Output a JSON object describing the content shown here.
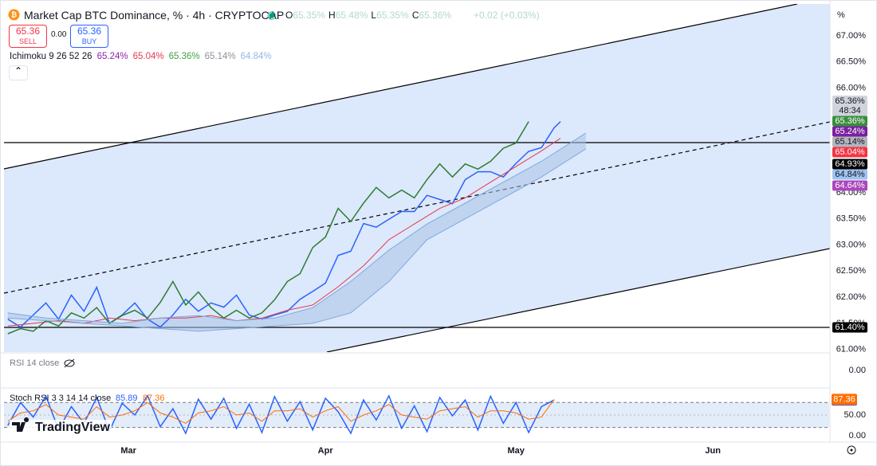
{
  "header": {
    "title": "Market Cap BTC Dominance, % · 4h · CRYPTOCAP",
    "ohlc": [
      {
        "label": "O",
        "value": "65.35%"
      },
      {
        "label": "H",
        "value": "65.48%"
      },
      {
        "label": "L",
        "value": "65.35%"
      },
      {
        "label": "C",
        "value": "65.36%"
      }
    ],
    "change": "+0.02 (+0.03%)",
    "sell": {
      "price": "65.36",
      "label": "SELL"
    },
    "spread": "0.00",
    "buy": {
      "price": "65.36",
      "label": "BUY"
    },
    "indicator": {
      "name": "Ichimoku 9 26 52 26",
      "values": [
        {
          "text": "65.24%",
          "color": "#8e24aa"
        },
        {
          "text": "65.04%",
          "color": "#e53950"
        },
        {
          "text": "65.36%",
          "color": "#43a047"
        },
        {
          "text": "65.14%",
          "color": "#8d9199"
        },
        {
          "text": "64.84%",
          "color": "#90b8e8"
        }
      ]
    },
    "unit": "%",
    "logo": "TradingView"
  },
  "price_labels": [
    {
      "text": "65.36%",
      "sub": "48:34",
      "color": "#d1d4dc",
      "text_color": "#131722"
    },
    {
      "text": "65.36%",
      "color": "#388e3c",
      "text_color": "#ffffff"
    },
    {
      "text": "65.24%",
      "color": "#7b1fa2",
      "text_color": "#ffffff"
    },
    {
      "text": "65.14%",
      "color": "#b2b5be",
      "text_color": "#131722"
    },
    {
      "text": "65.04%",
      "color": "#f23645",
      "text_color": "#ffffff"
    },
    {
      "text": "64.93%",
      "color": "#000000",
      "text_color": "#ffffff"
    },
    {
      "text": "64.84%",
      "color": "#9fc3f0",
      "text_color": "#131722"
    },
    {
      "text": "64.64%",
      "color": "#ab47bc",
      "text_color": "#ffffff"
    },
    {
      "text": "61.40%",
      "color": "#000000",
      "text_color": "#ffffff"
    }
  ],
  "rsi_panel": {
    "legend": "RSI 14 close",
    "tick_label": "0.00"
  },
  "chart_data": [
    {
      "type": "line",
      "xlim": [
        -19.6,
        110.3
      ],
      "xticks": [
        {
          "value": 0,
          "label": "Mar"
        },
        {
          "value": 31,
          "label": "Apr"
        },
        {
          "value": 61,
          "label": "May"
        },
        {
          "value": 92,
          "label": "Jun"
        }
      ],
      "ylim": [
        60.95,
        67.61
      ],
      "yticks": [
        {
          "value": 61,
          "label": "61.00%"
        },
        {
          "value": 61.5,
          "label": "61.50%"
        },
        {
          "value": 62,
          "label": "62.00%"
        },
        {
          "value": 62.5,
          "label": "62.50%"
        },
        {
          "value": 63,
          "label": "63.00%"
        },
        {
          "value": 63.5,
          "label": "63.50%"
        },
        {
          "value": 64,
          "label": "64.00%"
        },
        {
          "value": 64.5,
          "label": "64.50%"
        },
        {
          "value": 65,
          "label": "65.00%"
        },
        {
          "value": 65.5,
          "label": "65.50%"
        },
        {
          "value": 66,
          "label": "66.00%"
        },
        {
          "value": 66.5,
          "label": "66.50%"
        },
        {
          "value": 67,
          "label": "67.00%"
        }
      ],
      "cloud_color": "#a9c3e6",
      "series": [
        {
          "color": "#2962ff",
          "x": [
            -19,
            -17,
            -15,
            -13,
            -11,
            -9,
            -7,
            -5,
            -3,
            -1,
            1,
            3,
            5,
            7,
            9,
            11,
            13,
            15,
            17,
            19,
            21,
            23,
            25,
            27,
            29,
            31,
            33,
            35,
            37,
            39,
            41,
            43,
            45,
            47,
            49,
            51,
            53,
            55,
            57,
            59,
            61,
            63,
            65,
            67,
            68
          ],
          "values": [
            61.58,
            61.43,
            61.66,
            61.89,
            61.58,
            62.04,
            61.73,
            62.19,
            61.5,
            61.66,
            61.89,
            61.58,
            61.43,
            61.66,
            61.96,
            61.73,
            61.89,
            61.81,
            62.04,
            61.66,
            61.58,
            61.66,
            61.73,
            61.96,
            62.11,
            62.27,
            62.8,
            62.88,
            63.41,
            63.34,
            63.49,
            63.64,
            63.64,
            63.95,
            63.87,
            63.79,
            64.25,
            64.4,
            64.4,
            64.3,
            64.56,
            64.79,
            64.86,
            65.24,
            65.36
          ]
        },
        {
          "color": "#e53950",
          "x": [
            -19,
            -15,
            -11,
            -7,
            -3,
            1,
            5,
            9,
            13,
            17,
            21,
            25,
            29,
            33,
            37,
            41,
            45,
            49,
            53,
            57,
            61,
            65,
            68
          ],
          "values": [
            61.45,
            61.5,
            61.55,
            61.5,
            61.6,
            61.55,
            61.6,
            61.6,
            61.65,
            61.55,
            61.6,
            61.75,
            61.85,
            62.2,
            62.6,
            63.1,
            63.4,
            63.7,
            63.9,
            64.2,
            64.5,
            64.8,
            65.04
          ]
        },
        {
          "color": "#2e7d32",
          "x": [
            -19,
            -17,
            -15,
            -13,
            -11,
            -9,
            -7,
            -5,
            -3,
            -1,
            1,
            3,
            5,
            7,
            9,
            11,
            13,
            15,
            17,
            19,
            21,
            23,
            25,
            27,
            29,
            31,
            33,
            35,
            37,
            39,
            41,
            43,
            45,
            47,
            49,
            51,
            53,
            55,
            57,
            59,
            61,
            63
          ],
          "values": [
            61.3,
            61.4,
            61.35,
            61.55,
            61.45,
            61.7,
            61.6,
            61.8,
            61.5,
            61.65,
            61.75,
            61.6,
            61.9,
            62.3,
            61.85,
            62.1,
            61.8,
            61.6,
            61.75,
            61.6,
            61.7,
            61.95,
            62.3,
            62.45,
            62.95,
            63.15,
            63.7,
            63.45,
            63.8,
            64.1,
            63.9,
            64.05,
            63.9,
            64.25,
            64.55,
            64.3,
            64.55,
            64.45,
            64.6,
            64.85,
            64.95,
            65.36
          ]
        },
        {
          "color": "#7fa9dc",
          "x": [
            -19,
            -13,
            -7,
            -1,
            5,
            11,
            17,
            23,
            29,
            35,
            41,
            47,
            53,
            59,
            65,
            72
          ],
          "values": [
            61.7,
            61.6,
            61.55,
            61.5,
            61.6,
            61.65,
            61.55,
            61.6,
            61.8,
            62.3,
            62.9,
            63.4,
            63.8,
            64.2,
            64.6,
            65.14
          ]
        },
        {
          "color": "#7fa9dc",
          "x": [
            -19,
            -13,
            -7,
            -1,
            5,
            11,
            17,
            23,
            29,
            35,
            41,
            47,
            53,
            59,
            65,
            72
          ],
          "values": [
            61.6,
            61.55,
            61.5,
            61.45,
            61.4,
            61.35,
            61.4,
            61.45,
            61.5,
            61.7,
            62.3,
            63.1,
            63.5,
            63.9,
            64.3,
            64.84
          ]
        }
      ]
    },
    {
      "type": "line",
      "legend": "Stoch RSI 3 3 14 14 close",
      "xlim": [
        -19.6,
        110.3
      ],
      "ylim": [
        -15,
        113
      ],
      "yticks": [
        {
          "value": 0,
          "label": "0.00"
        },
        {
          "value": 50,
          "label": "50.00"
        }
      ],
      "bands": [
        20,
        80
      ],
      "band_color": "#e3ecf9",
      "series": [
        {
          "color": "#2962ff",
          "last_label": "85.89",
          "x": [
            -19,
            -17,
            -15,
            -13,
            -11,
            -9,
            -7,
            -5,
            -3,
            -1,
            1,
            3,
            5,
            7,
            9,
            11,
            13,
            15,
            17,
            19,
            21,
            23,
            25,
            27,
            29,
            31,
            33,
            35,
            37,
            39,
            41,
            43,
            45,
            47,
            49,
            51,
            53,
            55,
            57,
            59,
            61,
            63,
            65,
            67
          ],
          "values": [
            25,
            80,
            45,
            95,
            15,
            70,
            30,
            92,
            12,
            78,
            50,
            96,
            22,
            65,
            6,
            88,
            40,
            90,
            18,
            76,
            8,
            94,
            35,
            82,
            14,
            90,
            58,
            6,
            86,
            38,
            96,
            18,
            72,
            10,
            92,
            48,
            86,
            14,
            95,
            30,
            80,
            8,
            70,
            85.89
          ]
        },
        {
          "color": "#ff6d00",
          "last_label": "87.36",
          "x": [
            -19,
            -17,
            -15,
            -13,
            -11,
            -9,
            -7,
            -5,
            -3,
            -1,
            1,
            3,
            5,
            7,
            9,
            11,
            13,
            15,
            17,
            19,
            21,
            23,
            25,
            27,
            29,
            31,
            33,
            35,
            37,
            39,
            41,
            43,
            45,
            47,
            49,
            51,
            53,
            55,
            57,
            59,
            61,
            63,
            65,
            67
          ],
          "values": [
            35,
            55,
            60,
            75,
            50,
            45,
            40,
            70,
            45,
            50,
            60,
            80,
            55,
            45,
            30,
            55,
            60,
            70,
            50,
            55,
            35,
            60,
            60,
            65,
            45,
            60,
            70,
            35,
            50,
            60,
            75,
            50,
            45,
            40,
            60,
            65,
            70,
            45,
            60,
            60,
            55,
            40,
            45,
            87.36
          ]
        }
      ]
    }
  ]
}
